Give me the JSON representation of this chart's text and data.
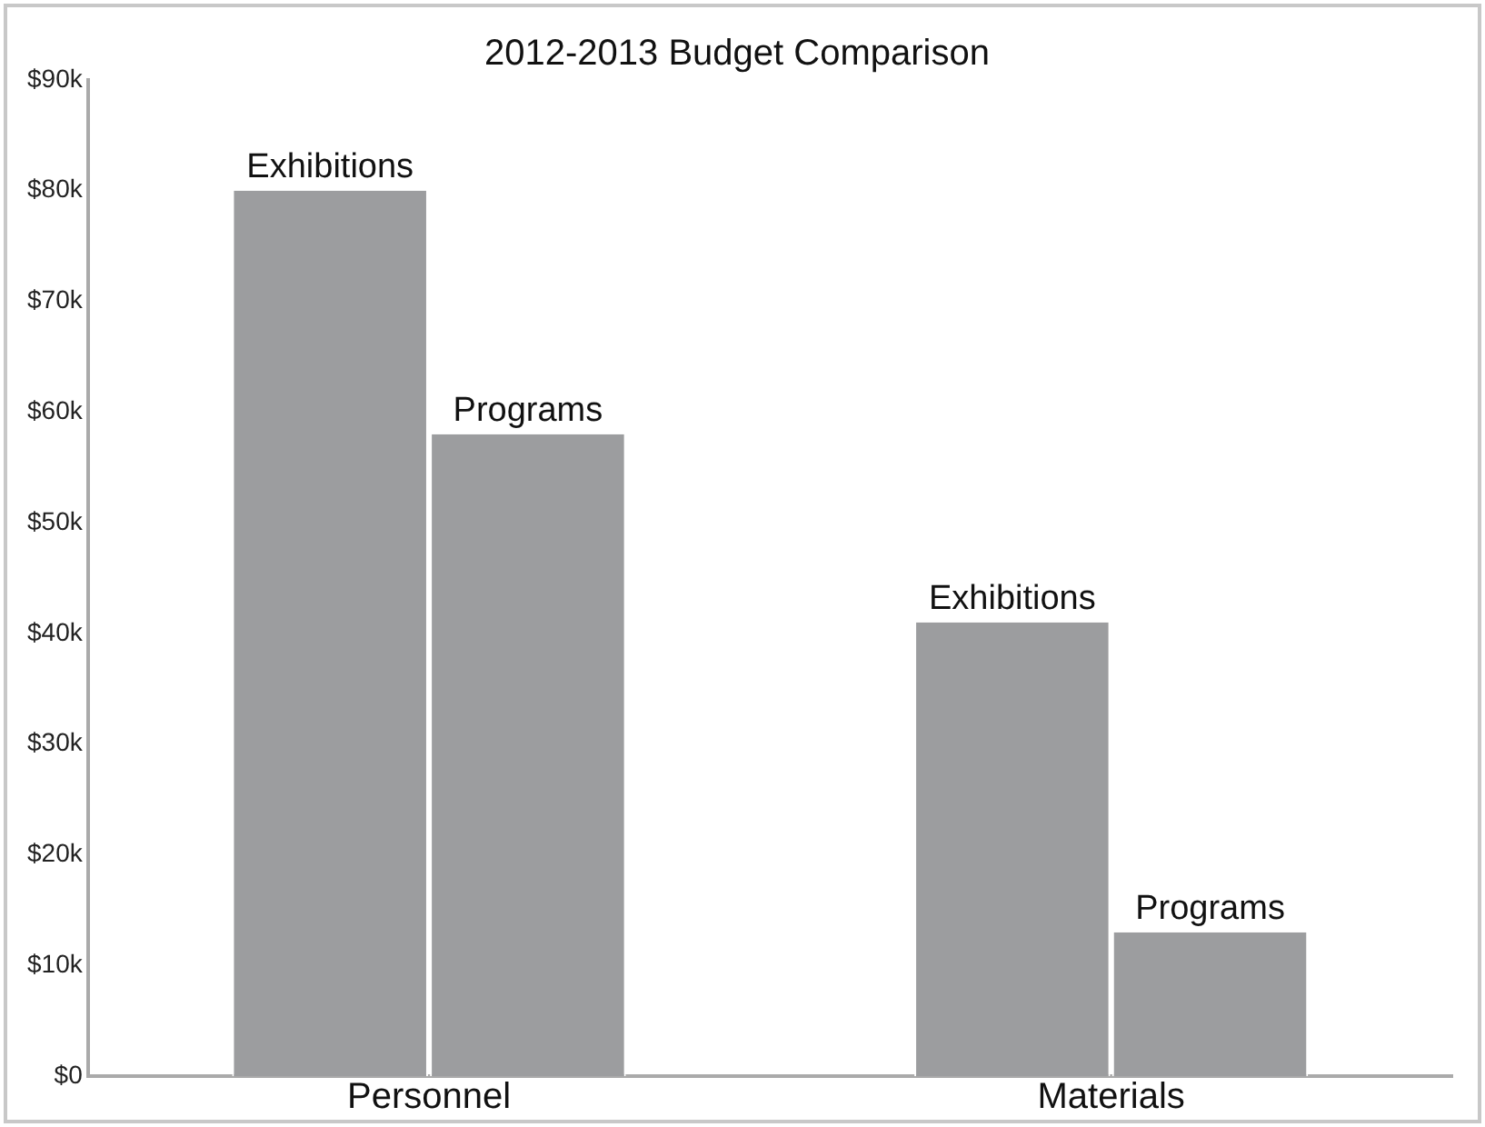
{
  "chart_data": {
    "type": "bar",
    "title": "2012-2013 Budget Comparison",
    "categories": [
      "Personnel",
      "Materials"
    ],
    "series": [
      {
        "name": "Exhibitions",
        "color": "#9c9d9f",
        "values": [
          80000,
          41000
        ]
      },
      {
        "name": "Programs",
        "color": "#9c9d9f",
        "values": [
          58000,
          13000
        ]
      }
    ],
    "ylim": [
      0,
      90000
    ],
    "yticks": [
      {
        "value": 0,
        "label": "$0"
      },
      {
        "value": 10000,
        "label": "$10k"
      },
      {
        "value": 20000,
        "label": "$20k"
      },
      {
        "value": 30000,
        "label": "$30k"
      },
      {
        "value": 40000,
        "label": "$40k"
      },
      {
        "value": 50000,
        "label": "$50k"
      },
      {
        "value": 60000,
        "label": "$60k"
      },
      {
        "value": 70000,
        "label": "$70k"
      },
      {
        "value": 80000,
        "label": "$80k"
      },
      {
        "value": 90000,
        "label": "$90k"
      }
    ],
    "grid": false,
    "legend": false
  }
}
